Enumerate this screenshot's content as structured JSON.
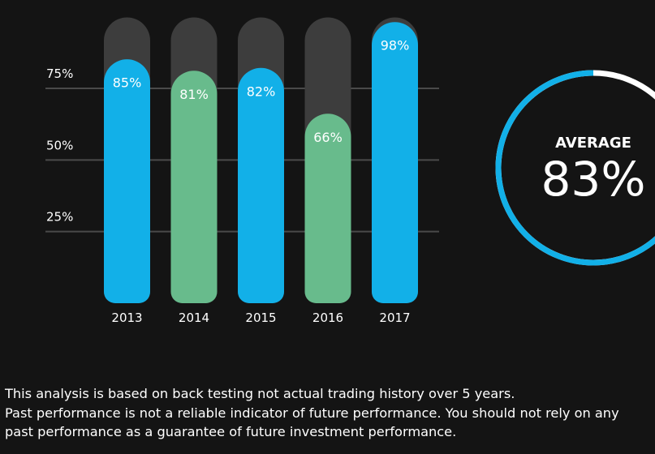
{
  "chart_data": [
    {
      "type": "bar",
      "categories": [
        "2013",
        "2014",
        "2015",
        "2016",
        "2017"
      ],
      "values": [
        85,
        81,
        82,
        66,
        98
      ],
      "data_labels": [
        "85%",
        "81%",
        "82%",
        "66%",
        "98%"
      ],
      "ylim": [
        0,
        100
      ],
      "yticks": [
        {
          "value": 25,
          "label": "25%"
        },
        {
          "value": 50,
          "label": "50%"
        },
        {
          "value": 75,
          "label": "75%"
        }
      ],
      "grid": true,
      "bar_colors": [
        "#12b0e8",
        "#68bb8c",
        "#12b0e8",
        "#68bb8c",
        "#12b0e8"
      ],
      "track_color": "#3d3d3d",
      "gridline_color": "#4a4a4a"
    },
    {
      "type": "pie",
      "label": "AVERAGE",
      "value_label": "83%",
      "value": 83,
      "max": 100,
      "fill_color": "#12b0e8",
      "remainder_color": "#ffffff"
    }
  ],
  "disclaimer": {
    "line1": "This analysis is based on back testing not actual trading history over 5 years.",
    "line2": "Past performance is not a reliable indicator of future performance. You should not rely on any",
    "line3": "past performance as a guarantee of future investment performance."
  }
}
